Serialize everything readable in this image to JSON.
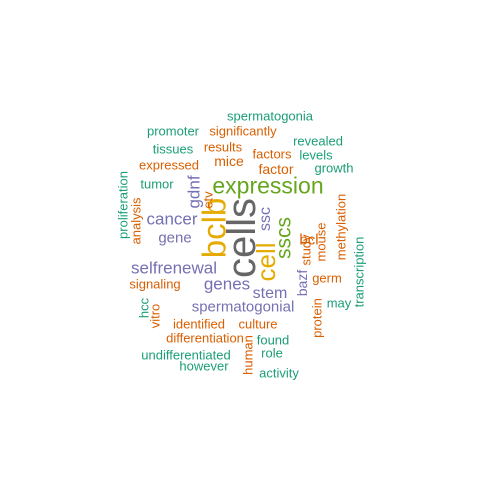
{
  "palette": {
    "teal": "#1b9e77",
    "orange": "#d95f02",
    "purple": "#7570b3",
    "green": "#66a61e",
    "gold": "#e6ab02",
    "gray": "#666666"
  },
  "words": [
    {
      "text": "cells",
      "color": "gray",
      "weight": 10,
      "vertical": true
    },
    {
      "text": "bclb",
      "color": "gold",
      "weight": 9,
      "vertical": true
    },
    {
      "text": "expression",
      "color": "green",
      "weight": 8,
      "vertical": false
    },
    {
      "text": "cell",
      "color": "gold",
      "weight": 8,
      "vertical": true
    },
    {
      "text": "sscs",
      "color": "green",
      "weight": 6,
      "vertical": true
    },
    {
      "text": "selfrenewal",
      "color": "purple",
      "weight": 5,
      "vertical": false
    },
    {
      "text": "genes",
      "color": "purple",
      "weight": 5,
      "vertical": false
    },
    {
      "text": "cancer",
      "color": "purple",
      "weight": 5,
      "vertical": false
    },
    {
      "text": "gdnf",
      "color": "purple",
      "weight": 5,
      "vertical": true
    },
    {
      "text": "stem",
      "color": "purple",
      "weight": 4,
      "vertical": false
    },
    {
      "text": "ssc",
      "color": "purple",
      "weight": 4,
      "vertical": true
    },
    {
      "text": "spermatogonial",
      "color": "purple",
      "weight": 4,
      "vertical": false
    },
    {
      "text": "gene",
      "color": "purple",
      "weight": 4,
      "vertical": false
    },
    {
      "text": "bcl",
      "color": "orange",
      "weight": 4,
      "vertical": false
    },
    {
      "text": "factor",
      "color": "orange",
      "weight": 4,
      "vertical": false
    },
    {
      "text": "bazf",
      "color": "purple",
      "weight": 3,
      "vertical": true
    },
    {
      "text": "study",
      "color": "orange",
      "weight": 3,
      "vertical": true
    },
    {
      "text": "mice",
      "color": "orange",
      "weight": 3,
      "vertical": false
    },
    {
      "text": "factors",
      "color": "orange",
      "weight": 3,
      "vertical": false
    },
    {
      "text": "results",
      "color": "orange",
      "weight": 3,
      "vertical": false
    },
    {
      "text": "significantly",
      "color": "orange",
      "weight": 3,
      "vertical": false
    },
    {
      "text": "expressed",
      "color": "orange",
      "weight": 3,
      "vertical": false
    },
    {
      "text": "identified",
      "color": "orange",
      "weight": 3,
      "vertical": false
    },
    {
      "text": "culture",
      "color": "orange",
      "weight": 3,
      "vertical": false
    },
    {
      "text": "differentiation",
      "color": "orange",
      "weight": 3,
      "vertical": false
    },
    {
      "text": "signaling",
      "color": "orange",
      "weight": 3,
      "vertical": false
    },
    {
      "text": "germ",
      "color": "orange",
      "weight": 3,
      "vertical": false
    },
    {
      "text": "mouse",
      "color": "orange",
      "weight": 3,
      "vertical": true
    },
    {
      "text": "methylation",
      "color": "orange",
      "weight": 3,
      "vertical": true
    },
    {
      "text": "protein",
      "color": "orange",
      "weight": 3,
      "vertical": true
    },
    {
      "text": "human",
      "color": "orange",
      "weight": 3,
      "vertical": true
    },
    {
      "text": "etv",
      "color": "orange",
      "weight": 3,
      "vertical": true
    },
    {
      "text": "analysis",
      "color": "orange",
      "weight": 3,
      "vertical": true
    },
    {
      "text": "vitro",
      "color": "orange",
      "weight": 3,
      "vertical": true
    },
    {
      "text": "spermatogonia",
      "color": "teal",
      "weight": 2,
      "vertical": false
    },
    {
      "text": "promoter",
      "color": "teal",
      "weight": 2,
      "vertical": false
    },
    {
      "text": "revealed",
      "color": "teal",
      "weight": 2,
      "vertical": false
    },
    {
      "text": "tissues",
      "color": "teal",
      "weight": 2,
      "vertical": false
    },
    {
      "text": "levels",
      "color": "teal",
      "weight": 2,
      "vertical": false
    },
    {
      "text": "growth",
      "color": "teal",
      "weight": 2,
      "vertical": false
    },
    {
      "text": "tumor",
      "color": "teal",
      "weight": 2,
      "vertical": false
    },
    {
      "text": "proliferation",
      "color": "teal",
      "weight": 2,
      "vertical": true
    },
    {
      "text": "transcription",
      "color": "teal",
      "weight": 2,
      "vertical": true
    },
    {
      "text": "may",
      "color": "teal",
      "weight": 2,
      "vertical": false
    },
    {
      "text": "hcc",
      "color": "teal",
      "weight": 2,
      "vertical": true
    },
    {
      "text": "found",
      "color": "teal",
      "weight": 2,
      "vertical": false
    },
    {
      "text": "role",
      "color": "teal",
      "weight": 2,
      "vertical": false
    },
    {
      "text": "undifferentiated",
      "color": "teal",
      "weight": 2,
      "vertical": false
    },
    {
      "text": "however",
      "color": "teal",
      "weight": 2,
      "vertical": false
    },
    {
      "text": "activity",
      "color": "teal",
      "weight": 2,
      "vertical": false
    }
  ]
}
